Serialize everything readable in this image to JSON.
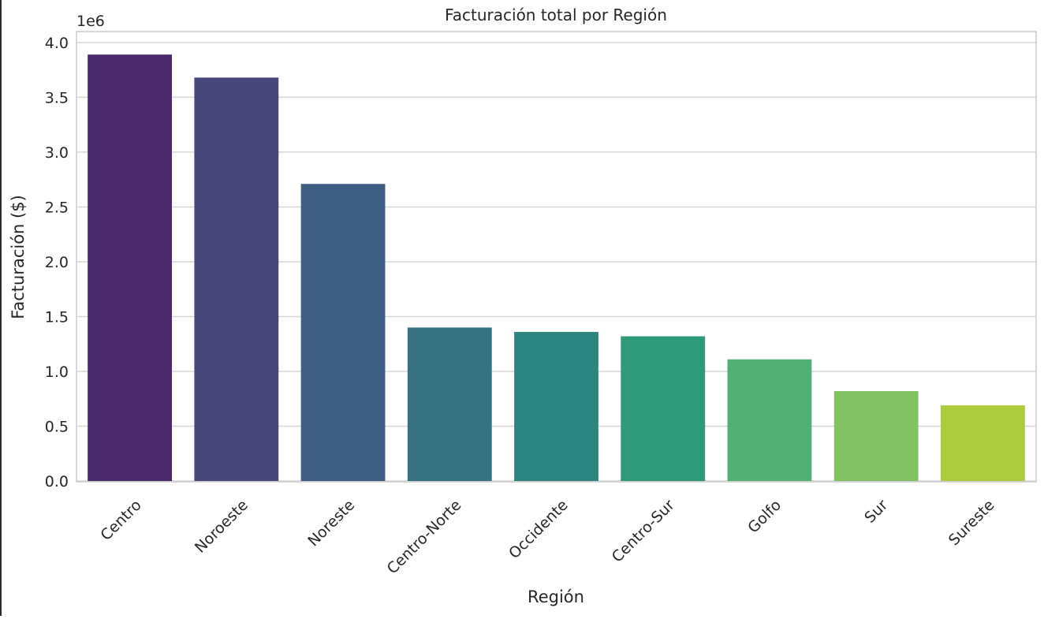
{
  "chart_data": {
    "type": "bar",
    "title": "Facturación total por Región",
    "xlabel": "Región",
    "ylabel": "Facturación ($)",
    "y_offset_label": "1e6",
    "categories": [
      "Centro",
      "Noroeste",
      "Noreste",
      "Centro-Norte",
      "Occidente",
      "Centro-Sur",
      "Golfo",
      "Sur",
      "Sureste"
    ],
    "values": [
      3890000,
      3680000,
      2710000,
      1400000,
      1360000,
      1320000,
      1110000,
      820000,
      690000
    ],
    "colors": [
      "#482a6c",
      "#47477c",
      "#3e5e83",
      "#357282",
      "#2d8580",
      "#2f9a79",
      "#52af75",
      "#82c262",
      "#abca3c"
    ],
    "ylim": [
      0,
      4100000
    ],
    "yticks": [
      0,
      500000,
      1000000,
      1500000,
      2000000,
      2500000,
      3000000,
      3500000,
      4000000
    ],
    "ytick_labels": [
      "0.0",
      "0.5",
      "1.0",
      "1.5",
      "2.0",
      "2.5",
      "3.0",
      "3.5",
      "4.0"
    ],
    "grid": true,
    "legend": "none"
  }
}
